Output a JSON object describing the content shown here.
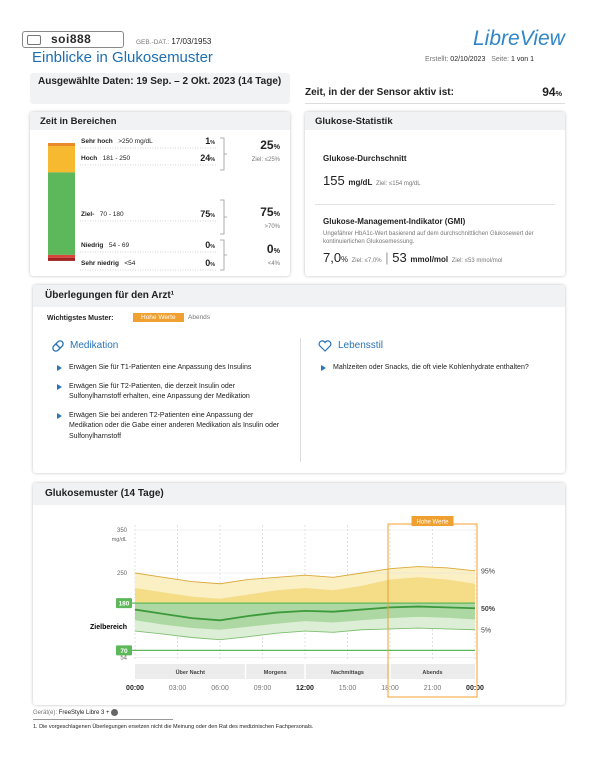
{
  "header": {
    "patient": "soi888",
    "dob_label": "GEB.-DAT.:",
    "dob": "17/03/1953",
    "title": "Einblicke in Glukosemuster",
    "brand": "LibreView",
    "created_label": "Erstellt:",
    "created": "02/10/2023",
    "page_label": "Seite:",
    "page": "1 von 1"
  },
  "selected_dates": "Ausgewählte Daten: 19 Sep. – 2 Okt. 2023 (14 Tage)",
  "sensor": {
    "label": "Zeit, in der der Sensor aktiv ist:",
    "value": 94,
    "unit": "%"
  },
  "time_in_range": {
    "title": "Zeit in Bereichen",
    "unit": "%",
    "rows": [
      {
        "name": "Sehr hoch",
        "range": ">250 mg/dL",
        "value": 1,
        "color": "#e98a2c"
      },
      {
        "name": "Hoch",
        "range": "181 - 250",
        "value": 24,
        "color": "#f6b92f"
      },
      {
        "name": "Ziel-",
        "range": "70 - 180",
        "value": 75,
        "color": "#5cb85a"
      },
      {
        "name": "Niedrig",
        "range": "54 - 69",
        "value": 0,
        "color": "#d9453c"
      },
      {
        "name": "Sehr niedrig",
        "range": "<54",
        "value": 0,
        "color": "#9e2320"
      }
    ],
    "groups": [
      {
        "value": 25,
        "goal": "Ziel: ≤25%"
      },
      {
        "value": 75,
        "goal": ">70%"
      },
      {
        "value": 0,
        "goal": "<4%"
      }
    ]
  },
  "statistics": {
    "title": "Glukose-Statistik",
    "average_label": "Glukose-Durchschnitt",
    "average": 155,
    "average_unit": "mg/dL",
    "average_goal": "Ziel: ≤154 mg/dL",
    "gmi_label": "Glukose-Management-Indikator (GMI)",
    "gmi_description": "Ungefährer HbA1c-Wert basierend auf dem durchschnittlichen Glukosewert der kontinuierlichen Glukosemessung.",
    "gmi_percent": "7,0",
    "gmi_percent_unit": "%",
    "gmi_percent_goal": "Ziel: ≤7,0%",
    "gmi_mmol": 53,
    "gmi_mmol_unit": "mmol/mol",
    "gmi_mmol_goal": "Ziel: ≤53 mmol/mol"
  },
  "considerations": {
    "title": "Überlegungen für den Arzt¹",
    "pattern_label": "Wichtigstes Muster:",
    "patterns": [
      "Hohe Werte",
      "Abends"
    ],
    "medication": {
      "title": "Medikation",
      "items": [
        "Erwägen Sie für T1-Patienten eine Anpassung des Insulins",
        "Erwägen Sie für T2-Patienten, die derzeit Insulin oder Sulfonylharnstoff erhalten, eine Anpassung der Medikation",
        "Erwägen Sie bei anderen T2-Patienten eine Anpassung der Medikation oder die Gabe einer anderen Medikation als Insulin oder Sulfonylharnstoff"
      ]
    },
    "lifestyle": {
      "title": "Lebensstil",
      "items": [
        "Mahlzeiten oder Snacks, die oft viele Kohlenhydrate enthalten?"
      ]
    }
  },
  "chart_data": {
    "type": "line",
    "title": "Glukosemuster (14 Tage)",
    "y_unit": "mg/dL",
    "target_label": "Zielbereich",
    "target_range": [
      70,
      180
    ],
    "x": [
      0,
      2,
      4,
      6,
      8,
      10,
      12,
      14,
      16,
      18,
      20,
      22,
      24
    ],
    "xlim": [
      0,
      24
    ],
    "xticks": [
      {
        "value": 0,
        "label": "00:00"
      },
      {
        "value": 3,
        "label": "03:00"
      },
      {
        "value": 6,
        "label": "06:00"
      },
      {
        "value": 9,
        "label": "09:00"
      },
      {
        "value": 12,
        "label": "12:00"
      },
      {
        "value": 15,
        "label": "15:00"
      },
      {
        "value": 18,
        "label": "18:00"
      },
      {
        "value": 21,
        "label": "21:00"
      },
      {
        "value": 24,
        "label": "00:00"
      }
    ],
    "ylim": [
      50,
      350
    ],
    "yticks": [
      54,
      70,
      180,
      250,
      350
    ],
    "series": [
      {
        "name": "95%",
        "color": "#d9a93a",
        "values": [
          250,
          240,
          230,
          225,
          235,
          240,
          245,
          240,
          250,
          260,
          265,
          262,
          255
        ]
      },
      {
        "name": "50%",
        "color": "#3c9a3c",
        "values": [
          165,
          155,
          145,
          140,
          150,
          158,
          162,
          160,
          165,
          170,
          172,
          170,
          168
        ]
      },
      {
        "name": "5%",
        "color": "#7dbf70",
        "values": [
          115,
          108,
          100,
          95,
          102,
          110,
          115,
          112,
          118,
          120,
          122,
          120,
          118
        ]
      }
    ],
    "quartiles": {
      "upper": [
        215,
        205,
        195,
        190,
        200,
        210,
        215,
        210,
        220,
        235,
        240,
        235,
        225
      ],
      "lower": [
        140,
        130,
        122,
        118,
        125,
        132,
        138,
        135,
        140,
        145,
        148,
        146,
        142
      ]
    },
    "periods": [
      "Über Nacht",
      "Morgens",
      "Nachmittags",
      "Abends"
    ],
    "highlight": "Hohe Werte"
  },
  "footer": {
    "devices_label": "Gerät(e):",
    "devices": "FreeStyle Libre 3 +",
    "footnote": "1. Die vorgeschlagenen Überlegungen ersetzen nicht die Meinung oder den Rat des medizinischen Fachpersonals."
  }
}
